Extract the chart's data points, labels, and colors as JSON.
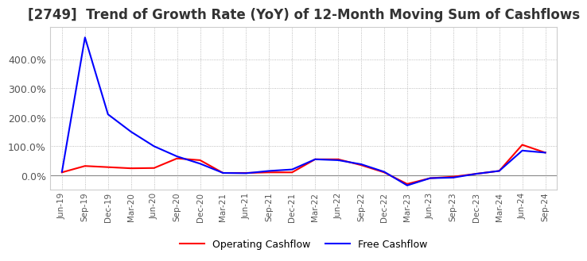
{
  "title": "[2749]  Trend of Growth Rate (YoY) of 12-Month Moving Sum of Cashflows",
  "title_fontsize": 12,
  "ylim": [
    -50,
    510
  ],
  "yticks": [
    0,
    100,
    200,
    300,
    400
  ],
  "ytick_labels": [
    "0.0%",
    "100.0%",
    "200.0%",
    "300.0%",
    "400.0%"
  ],
  "x_labels": [
    "Jun-19",
    "Sep-19",
    "Dec-19",
    "Mar-20",
    "Jun-20",
    "Sep-20",
    "Dec-20",
    "Mar-21",
    "Jun-21",
    "Sep-21",
    "Dec-21",
    "Mar-22",
    "Jun-22",
    "Sep-22",
    "Dec-22",
    "Mar-23",
    "Jun-23",
    "Sep-23",
    "Dec-23",
    "Mar-24",
    "Jun-24",
    "Sep-24"
  ],
  "operating_cashflow": [
    10,
    32,
    28,
    24,
    25,
    58,
    52,
    8,
    8,
    10,
    10,
    55,
    55,
    35,
    10,
    -30,
    -10,
    -5,
    5,
    15,
    105,
    78
  ],
  "free_cashflow": [
    12,
    475,
    210,
    150,
    100,
    65,
    40,
    8,
    7,
    15,
    20,
    55,
    52,
    38,
    12,
    -35,
    -10,
    -8,
    5,
    15,
    85,
    78
  ],
  "operating_color": "#ff0000",
  "free_color": "#0000ff",
  "background_color": "#ffffff",
  "grid_color": "#aaaaaa",
  "legend_labels": [
    "Operating Cashflow",
    "Free Cashflow"
  ]
}
